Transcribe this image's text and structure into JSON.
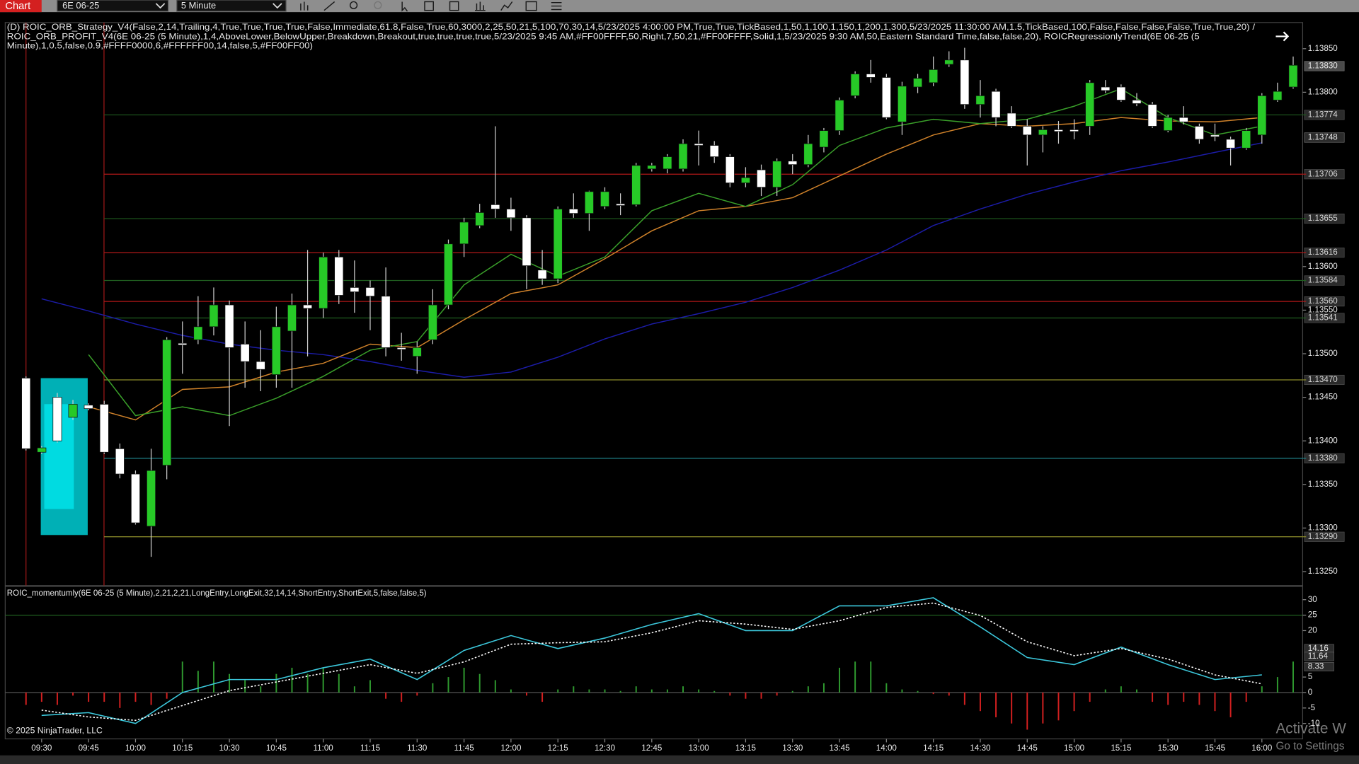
{
  "toolbar": {
    "tab": "Chart",
    "instrument": "6E 06-25",
    "interval": "5 Minute"
  },
  "chart_data": [
    {
      "type": "candlestick",
      "title_lines": [
        "(D) ROIC_ORB_Strategy_V4(False,2,14,Trailing,4,True,True,True,True,False,Immediate,61.8,False,True,60,3000,2,25,50,21,5,100,70,30,14,5/23/2025 4:00:00 PM,True,True,TickBased,1,50,1,100,1,150,1,200,1,300,5/23/2025 11:30:00 AM,1.5,TickBased,100,False,False,False,False,True,True,20) /",
        "ROIC_ORB_PROFIT_V4(6E 06-25 (5 Minute),1,4,AboveLower,BelowUpper,Breakdown,Breakout,true,true,true,true,5/23/2025 9:45 AM,#FF00FFFF,50,Right,7,50,21,#FF00FFFF,Solid,1,5/23/2025 9:30 AM,50,Eastern Standard Time,false,false,20), ROICRegressionlyTrend(6E 06-25 (5",
        "Minute),1,0.5,false,0.9,#FFFF0000,6,#FFFFFF00,14,false,5,#FF00FF00)"
      ],
      "categories": [
        null,
        "09:30",
        null,
        null,
        "09:45",
        null,
        null,
        "10:00",
        null,
        null,
        "10:15",
        null,
        null,
        "10:30",
        null,
        null,
        "10:45",
        null,
        null,
        "11:00",
        null,
        null,
        "11:15",
        null,
        null,
        "11:30",
        null,
        null,
        "11:45",
        null,
        null,
        "12:00",
        null,
        null,
        "12:15",
        null,
        null,
        "12:30",
        null,
        null,
        "12:45",
        null,
        null,
        "13:00",
        null,
        null,
        "13:15",
        null,
        null,
        "13:30",
        null,
        null,
        "13:45",
        null,
        null,
        "14:00",
        null,
        null,
        "14:15",
        null,
        null,
        "14:30",
        null,
        null,
        "14:45",
        null,
        null,
        "15:00",
        null,
        null,
        "15:15",
        null,
        null,
        "15:30",
        null,
        null,
        "15:45",
        null,
        null,
        "16:00",
        null,
        null
      ],
      "open": [
        1.13472,
        1.13387,
        1.1345,
        1.13427,
        1.13441,
        1.13442,
        1.13391,
        1.13362,
        1.13302,
        1.13372,
        1.13512,
        1.13516,
        1.13531,
        1.13556,
        1.13511,
        1.13491,
        1.13476,
        1.13526,
        1.13556,
        1.13552,
        1.13611,
        1.13576,
        1.13576,
        1.13566,
        1.13507,
        1.13497,
        1.13516,
        1.13556,
        1.13626,
        1.13647,
        1.13671,
        1.13666,
        1.13656,
        1.13596,
        1.13586,
        1.13666,
        1.13661,
        1.13669,
        1.13672,
        1.13671,
        1.13712,
        1.13712,
        1.13712,
        1.13741,
        1.13739,
        1.13726,
        1.13696,
        1.13711,
        1.13691,
        1.13721,
        1.13717,
        1.13737,
        1.13756,
        1.13796,
        1.13821,
        1.13817,
        1.13766,
        1.13806,
        1.13811,
        1.13832,
        1.13837,
        1.13786,
        1.13801,
        1.13776,
        1.13761,
        1.13751,
        1.13757,
        1.13757,
        1.13761,
        1.13806,
        1.13806,
        1.13791,
        1.13786,
        1.13756,
        1.13771,
        1.13761,
        1.13751,
        1.13746,
        1.13736,
        1.13751,
        1.13791,
        1.13806
      ],
      "high": [
        1.13474,
        1.13394,
        1.13455,
        1.13447,
        1.13443,
        1.13446,
        1.13397,
        1.13366,
        1.13391,
        1.13519,
        1.13537,
        1.13566,
        1.13576,
        1.13561,
        1.13537,
        1.13527,
        1.13554,
        1.13569,
        1.13619,
        1.13616,
        1.13619,
        1.13607,
        1.13584,
        1.13599,
        1.13524,
        1.13514,
        1.13574,
        1.13631,
        1.13656,
        1.13672,
        1.13761,
        1.13679,
        1.13659,
        1.13619,
        1.13669,
        1.13684,
        1.13687,
        1.13691,
        1.13684,
        1.13719,
        1.13719,
        1.13729,
        1.13746,
        1.13756,
        1.13744,
        1.13729,
        1.13714,
        1.13717,
        1.13724,
        1.13729,
        1.13751,
        1.13759,
        1.13794,
        1.13824,
        1.13837,
        1.13821,
        1.13812,
        1.13821,
        1.13841,
        1.13847,
        1.13851,
        1.13814,
        1.13804,
        1.13784,
        1.13769,
        1.13761,
        1.13767,
        1.13769,
        1.13814,
        1.13814,
        1.13809,
        1.13799,
        1.13789,
        1.13774,
        1.13784,
        1.13764,
        1.13764,
        1.13749,
        1.13759,
        1.13799,
        1.13811,
        1.13841
      ],
      "low": [
        1.13389,
        1.13385,
        1.13398,
        1.13424,
        1.13435,
        1.13385,
        1.13357,
        1.13304,
        1.13267,
        1.13356,
        1.13477,
        1.13511,
        1.13521,
        1.13417,
        1.13461,
        1.13457,
        1.13461,
        1.13461,
        1.13497,
        1.13541,
        1.13557,
        1.13547,
        1.13527,
        1.13497,
        1.13492,
        1.13477,
        1.13511,
        1.13551,
        1.13611,
        1.13644,
        1.13656,
        1.13641,
        1.13574,
        1.13579,
        1.13581,
        1.13656,
        1.13641,
        1.13666,
        1.13659,
        1.13669,
        1.13709,
        1.13707,
        1.13709,
        1.13716,
        1.13719,
        1.13691,
        1.13691,
        1.13681,
        1.13681,
        1.13706,
        1.13714,
        1.13731,
        1.13751,
        1.13793,
        1.13811,
        1.13769,
        1.13751,
        1.13799,
        1.13807,
        1.13829,
        1.13781,
        1.13771,
        1.13761,
        1.13759,
        1.13716,
        1.13731,
        1.13741,
        1.13746,
        1.13751,
        1.13799,
        1.13789,
        1.13784,
        1.13759,
        1.13754,
        1.13763,
        1.13741,
        1.13744,
        1.13716,
        1.13734,
        1.13741,
        1.13789,
        1.13804
      ],
      "close": [
        1.13391,
        1.13392,
        1.134,
        1.13442,
        1.13437,
        1.13387,
        1.13362,
        1.13306,
        1.13366,
        1.13516,
        1.1351,
        1.13531,
        1.13556,
        1.13507,
        1.13491,
        1.13482,
        1.13531,
        1.13556,
        1.13552,
        1.13611,
        1.13567,
        1.13571,
        1.13566,
        1.13507,
        1.13505,
        1.13507,
        1.13556,
        1.13626,
        1.13651,
        1.13662,
        1.13666,
        1.13656,
        1.13601,
        1.13586,
        1.13666,
        1.13661,
        1.13686,
        1.13686,
        1.1367,
        1.13716,
        1.13716,
        1.13726,
        1.13741,
        1.13739,
        1.13726,
        1.13696,
        1.13702,
        1.13691,
        1.13721,
        1.13717,
        1.13741,
        1.13756,
        1.13791,
        1.13821,
        1.13817,
        1.13771,
        1.13807,
        1.13816,
        1.13826,
        1.13837,
        1.13786,
        1.13796,
        1.13771,
        1.13761,
        1.13751,
        1.13757,
        1.13755,
        1.13755,
        1.13811,
        1.13802,
        1.13791,
        1.13787,
        1.13761,
        1.13771,
        1.13766,
        1.13746,
        1.13749,
        1.13736,
        1.13756,
        1.13796,
        1.13801,
        1.13831
      ],
      "up_color": "#27c927",
      "down_color": "#ffffff",
      "ylim": [
        1.13234,
        1.1388
      ],
      "yticks": [
        {
          "value": 1.1385,
          "label": "1.13850"
        },
        {
          "value": 1.138,
          "label": "1.13800"
        },
        {
          "value": 1.136,
          "label": "1.13600"
        },
        {
          "value": 1.1355,
          "label": "1.13550"
        },
        {
          "value": 1.135,
          "label": "1.13500"
        },
        {
          "value": 1.1345,
          "label": "1.13450"
        },
        {
          "value": 1.134,
          "label": "1.13400"
        },
        {
          "value": 1.1335,
          "label": "1.13350"
        },
        {
          "value": 1.133,
          "label": "1.13300"
        },
        {
          "value": 1.1325,
          "label": "1.13250"
        }
      ],
      "levels": [
        {
          "value": 1.13774,
          "color": "#1f5e1f"
        },
        {
          "value": 1.13706,
          "color": "#b01818"
        },
        {
          "value": 1.13655,
          "color": "#1f5e1f"
        },
        {
          "value": 1.13616,
          "color": "#b01818"
        },
        {
          "value": 1.13584,
          "color": "#1f5e1f"
        },
        {
          "value": 1.1356,
          "label": "1.13560",
          "color": "#b01818"
        },
        {
          "value": 1.13541,
          "color": "#1f5e1f"
        },
        {
          "value": 1.1347,
          "label": "1.13470",
          "color": "#8c8c2a"
        },
        {
          "value": 1.1338,
          "label": "1.13380",
          "color": "#1e7f86"
        },
        {
          "value": 1.1329,
          "label": "1.13290",
          "color": "#8c8c2a"
        }
      ],
      "price_markers": [
        {
          "value": 1.1383,
          "label": "1.13830"
        },
        {
          "value": 1.13748
        }
      ],
      "opening_range": {
        "values": [
          1.13292,
          1.13472
        ],
        "color": "#00cfd6"
      },
      "overlays": [
        {
          "color": "#1c1ca8",
          "x": [
            "09:30",
            "09:45",
            "10:00",
            "10:15",
            "10:30",
            "10:45",
            "11:00",
            "11:15",
            "11:30",
            "11:45",
            "12:00",
            "12:15",
            "12:30",
            "12:45",
            "13:00",
            "13:15",
            "13:30",
            "13:45",
            "14:00",
            "14:15",
            "14:30",
            "14:45",
            "15:00",
            "15:15",
            "15:30",
            "15:45",
            "16:00"
          ],
          "values": [
            1.13563,
            1.13549,
            1.13534,
            1.13521,
            1.13511,
            1.13504,
            1.13499,
            1.13491,
            1.13481,
            1.13473,
            1.13479,
            1.13496,
            1.13517,
            1.13534,
            1.13546,
            1.13559,
            1.13576,
            1.13596,
            1.13619,
            1.13647,
            1.13666,
            1.13683,
            1.13697,
            1.1371,
            1.1372,
            1.13731,
            1.13742
          ]
        },
        {
          "color": "#d0822a",
          "x": [
            "09:45",
            "10:00",
            "10:15",
            "10:30",
            "10:45",
            "11:00",
            "11:15",
            "11:30",
            "11:45",
            "12:00",
            "12:15",
            "12:30",
            "12:45",
            "13:00",
            "13:15",
            "13:30",
            "13:45",
            "14:00",
            "14:15",
            "14:30",
            "14:45",
            "15:00",
            "15:15",
            "15:30",
            "15:45",
            "16:00"
          ],
          "values": [
            1.13439,
            1.13424,
            1.13459,
            1.13462,
            1.13479,
            1.13489,
            1.13511,
            1.13507,
            1.13539,
            1.13569,
            1.13579,
            1.13609,
            1.13641,
            1.13664,
            1.13669,
            1.13679,
            1.13704,
            1.13729,
            1.13751,
            1.13764,
            1.13761,
            1.13764,
            1.13771,
            1.13767,
            1.13766,
            1.13771
          ]
        },
        {
          "color": "#3aa02a",
          "x": [
            "09:45",
            "10:00",
            "10:15",
            "10:30",
            "10:45",
            "11:00",
            "11:15",
            "11:30",
            "11:45",
            "12:00",
            "12:15",
            "12:30",
            "12:45",
            "13:00",
            "13:15",
            "13:30",
            "13:45",
            "14:00",
            "14:15",
            "14:30",
            "14:45",
            "15:00",
            "15:15",
            "15:30",
            "15:45",
            "16:00"
          ],
          "values": [
            1.13499,
            1.13429,
            1.13439,
            1.13429,
            1.13449,
            1.13474,
            1.13504,
            1.13514,
            1.13579,
            1.13614,
            1.13589,
            1.13611,
            1.13664,
            1.13684,
            1.13669,
            1.13694,
            1.13739,
            1.13759,
            1.13769,
            1.13764,
            1.13769,
            1.13784,
            1.13804,
            1.13771,
            1.13751,
            1.13761
          ]
        }
      ]
    },
    {
      "type": "momentum",
      "title": "ROIC_momentumly(6E 06-25 (5 Minute),2,21,2,21,LongEntry,LongExit,32,14,14,ShortEntry,ShortExit,5,false,false,5)",
      "histogram": {
        "values": [
          -4,
          -3,
          -4,
          -1,
          -3,
          -3,
          -5,
          -3,
          -4,
          -2,
          10,
          7,
          10,
          6,
          4,
          2,
          6,
          8,
          6,
          8,
          6,
          2,
          4,
          -2,
          -3,
          -1,
          3,
          5,
          8,
          6,
          4,
          1,
          -1,
          -3,
          1,
          2,
          1,
          1,
          0.5,
          2,
          1,
          1,
          2,
          1,
          0.5,
          -1,
          -2,
          -2,
          -1,
          0.5,
          2,
          3,
          8,
          10,
          10,
          3,
          1,
          0.5,
          -0.5,
          -1,
          -4,
          -6,
          -8,
          -10,
          -12,
          -10,
          -9,
          -6,
          -3,
          1,
          2,
          1,
          -3,
          -4,
          -3,
          -4,
          -6,
          -8,
          -3,
          2,
          5,
          10
        ],
        "up_color": "#2f9a2f",
        "down_color": "#d42020"
      },
      "x": [
        "09:30",
        "09:45",
        "10:00",
        "10:15",
        "10:30",
        "10:45",
        "11:00",
        "11:15",
        "11:30",
        "11:45",
        "12:00",
        "12:15",
        "12:30",
        "12:45",
        "13:00",
        "13:15",
        "13:30",
        "13:45",
        "14:00",
        "14:15",
        "14:30",
        "14:45",
        "15:00",
        "15:15",
        "15:30",
        "15:45",
        "16:00"
      ],
      "series": [
        {
          "color": "#3cc8dc",
          "values": [
            -7.4,
            -6.5,
            -10,
            0,
            4.2,
            4.2,
            8,
            10.8,
            4.2,
            13.6,
            18.4,
            14.2,
            17.6,
            22,
            25.5,
            20,
            20,
            28,
            28,
            30.6,
            21.2,
            11.3,
            9,
            14.7,
            9,
            4.2,
            5.7
          ]
        },
        {
          "color": "#ffffff",
          "dashed": true,
          "values": [
            -5.7,
            -7.9,
            -9,
            -4.2,
            0.6,
            3.4,
            6.2,
            9,
            6.2,
            9.9,
            15.6,
            16.1,
            16.4,
            19.3,
            23.2,
            22.1,
            20.4,
            23.2,
            27.5,
            28.9,
            24.9,
            16.4,
            11.9,
            14.2,
            10.8,
            5.7,
            2.8
          ]
        }
      ],
      "ylim": [
        -14.7,
        34
      ],
      "yticks": [
        30,
        25,
        20,
        5,
        0,
        -5,
        -10
      ],
      "levels": [
        {
          "value": 25,
          "color": "#1f5e1f"
        },
        {
          "value": 0,
          "color": "#555555"
        }
      ],
      "price_markers": [
        14.16,
        11.64,
        8.33
      ]
    }
  ],
  "footer": "© 2025 NinjaTrader, LLC",
  "watermark": [
    "Activate W",
    "Go to Settings"
  ]
}
